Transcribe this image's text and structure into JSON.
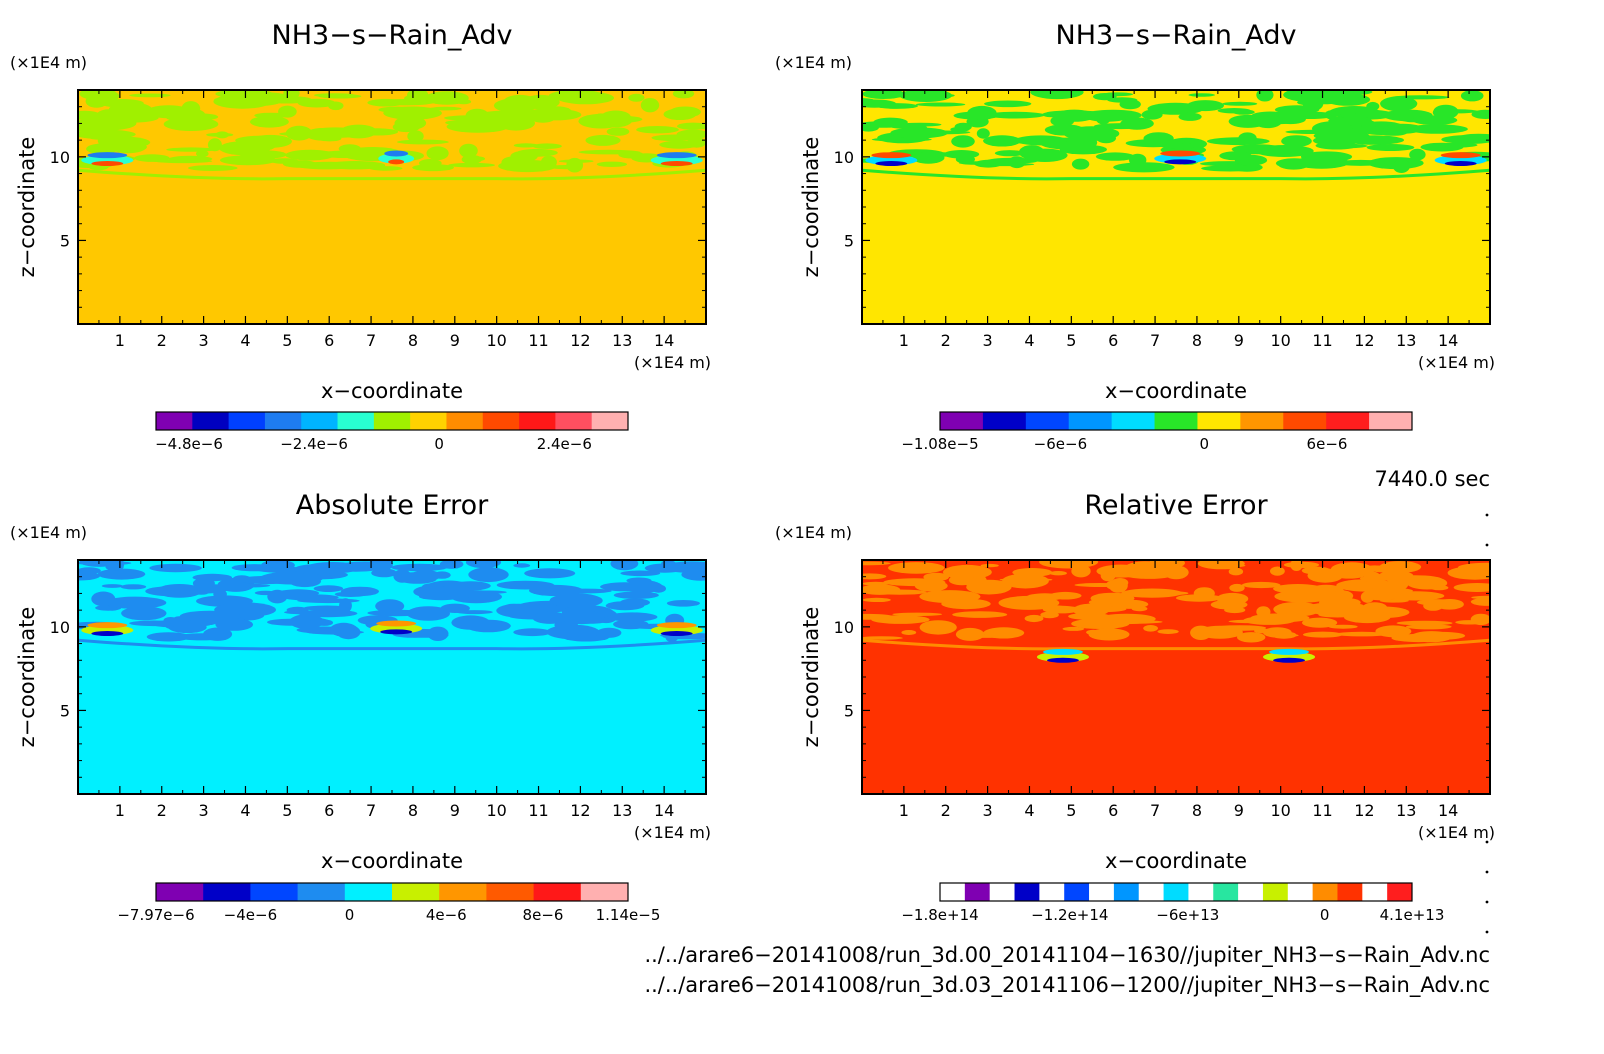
{
  "chart_data": [
    {
      "type": "heatmap",
      "title": "NH3−s−Rain_Adv",
      "xlabel": "x−coordinate",
      "ylabel": "z−coordinate",
      "x_unit": "(×1E4 m)",
      "y_unit": "(×1E4 m)",
      "xlim": [
        0,
        15
      ],
      "ylim": [
        0,
        14
      ],
      "x_ticks": [
        "1",
        "2",
        "3",
        "4",
        "5",
        "6",
        "7",
        "8",
        "9",
        "10",
        "11",
        "12",
        "13",
        "14"
      ],
      "y_ticks": [
        "5",
        "10"
      ],
      "background_level": "0",
      "colorbar": {
        "colors": [
          "#7f00b2",
          "#0000c0",
          "#0040ff",
          "#1e7cf0",
          "#00b4ff",
          "#28ffd2",
          "#a0f000",
          "#ffd200",
          "#ff8c00",
          "#ff4a00",
          "#ff1818",
          "#ff4f60",
          "#ffb0b0"
        ],
        "labels": [
          "−4.8e−6",
          "−2.4e−6",
          "0",
          "2.4e−6"
        ]
      }
    },
    {
      "type": "heatmap",
      "title": "NH3−s−Rain_Adv",
      "xlabel": "x−coordinate",
      "ylabel": "z−coordinate",
      "x_unit": "(×1E4 m)",
      "y_unit": "(×1E4 m)",
      "xlim": [
        0,
        15
      ],
      "ylim": [
        0,
        14
      ],
      "x_ticks": [
        "1",
        "2",
        "3",
        "4",
        "5",
        "6",
        "7",
        "8",
        "9",
        "10",
        "11",
        "12",
        "13",
        "14"
      ],
      "y_ticks": [
        "5",
        "10"
      ],
      "background_level": "0",
      "colorbar": {
        "colors": [
          "#7f00b2",
          "#0000c8",
          "#0046ff",
          "#0096ff",
          "#00dcff",
          "#28e628",
          "#ffe600",
          "#ff9600",
          "#ff4a00",
          "#ff1e1e",
          "#ffb0b0"
        ],
        "labels": [
          "−1.08e−5",
          "−6e−6",
          "0",
          "6e−6"
        ]
      }
    },
    {
      "type": "heatmap",
      "title": "Absolute Error",
      "xlabel": "x−coordinate",
      "ylabel": "z−coordinate",
      "x_unit": "(×1E4 m)",
      "y_unit": "(×1E4 m)",
      "xlim": [
        0,
        15
      ],
      "ylim": [
        0,
        14
      ],
      "x_ticks": [
        "1",
        "2",
        "3",
        "4",
        "5",
        "6",
        "7",
        "8",
        "9",
        "10",
        "11",
        "12",
        "13",
        "14"
      ],
      "y_ticks": [
        "5",
        "10"
      ],
      "background_level": "0",
      "colorbar": {
        "colors": [
          "#7f00b2",
          "#0000c8",
          "#0046ff",
          "#1e8cf0",
          "#00f0ff",
          "#c8f000",
          "#ff9600",
          "#ff5a00",
          "#ff1818",
          "#ffb0b0"
        ],
        "labels": [
          "−7.97e−6",
          "−4e−6",
          "0",
          "4e−6",
          "8e−6",
          "1.14e−5"
        ]
      }
    },
    {
      "type": "heatmap",
      "title": "Relative Error",
      "xlabel": "x−coordinate",
      "ylabel": "z−coordinate",
      "x_unit": "(×1E4 m)",
      "y_unit": "(×1E4 m)",
      "xlim": [
        0,
        15
      ],
      "ylim": [
        0,
        14
      ],
      "x_ticks": [
        "1",
        "2",
        "3",
        "4",
        "5",
        "6",
        "7",
        "8",
        "9",
        "10",
        "11",
        "12",
        "13",
        "14"
      ],
      "y_ticks": [
        "5",
        "10"
      ],
      "background_level": "0",
      "colorbar": {
        "colors": [
          "#ffffff",
          "#7f00b2",
          "#ffffff",
          "#0000c8",
          "#ffffff",
          "#0046ff",
          "#ffffff",
          "#0096ff",
          "#ffffff",
          "#00dcff",
          "#ffffff",
          "#28e6a0",
          "#ffffff",
          "#c8f000",
          "#ffffff",
          "#ff8c00",
          "#ff3200",
          "#ffffff",
          "#ff1e1e"
        ],
        "labels": [
          "−1.8e+14",
          "−1.2e+14",
          "−6e+13",
          "0",
          "4.1e+13"
        ]
      }
    }
  ],
  "time_label": "7440.0 sec",
  "files": [
    "../../arare6−20141008/run_3d.00_20141104−1630//jupiter_NH3−s−Rain_Adv.nc",
    "../../arare6−20141008/run_3d.03_20141106−1200//jupiter_NH3−s−Rain_Adv.nc"
  ],
  "palettes": {
    "p0": {
      "bg": "#ffc800",
      "band": "#a0f000",
      "core": [
        "#ff4a00",
        "#1e7cf0",
        "#28ffd2"
      ]
    },
    "p1": {
      "bg": "#ffe600",
      "band": "#28e628",
      "core": [
        "#0000c8",
        "#ff4a00",
        "#00dcff"
      ]
    },
    "p2": {
      "bg": "#00f0ff",
      "band": "#1e8cf0",
      "core": [
        "#0000c8",
        "#ff9600",
        "#c8f000"
      ]
    },
    "p3": {
      "bg": "#ff3200",
      "band": "#ff8c00",
      "core": [
        "#0000c8",
        "#00dcff",
        "#c8f000"
      ]
    }
  }
}
